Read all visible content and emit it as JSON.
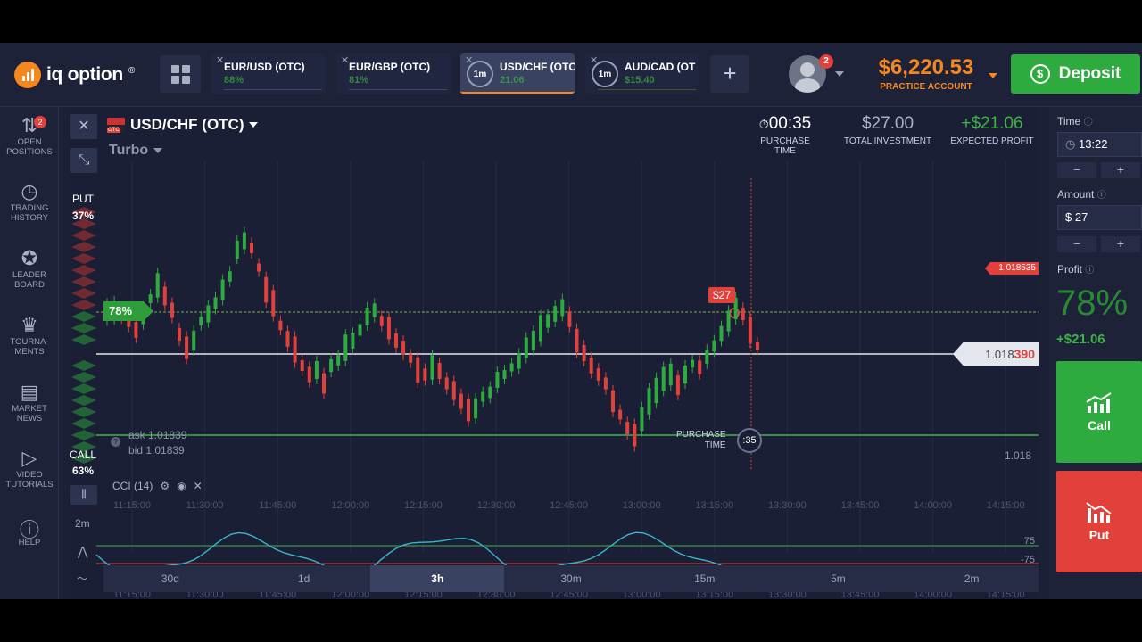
{
  "logo": {
    "text": "iq option",
    "mark": "®"
  },
  "asset_tabs": [
    {
      "name": "EUR/USD (OTC)",
      "pct": "88%",
      "timer": ""
    },
    {
      "name": "EUR/GBP (OTC)",
      "pct": "81%",
      "timer": ""
    },
    {
      "name": "USD/CHF (OTC",
      "pct": "21.06",
      "timer": "1m"
    },
    {
      "name": "AUD/CAD (OT",
      "pct": "$15.40",
      "timer": "1m"
    }
  ],
  "header": {
    "avatar_badge": "2",
    "balance": "$6,220.53",
    "account_type": "PRACTICE ACCOUNT",
    "deposit_label": "Deposit"
  },
  "sidebar": {
    "items": [
      {
        "label": "Open\npositions",
        "icon": "arrows-updown-icon",
        "badge": "2"
      },
      {
        "label": "Trading\nhistory",
        "icon": "history-icon"
      },
      {
        "label": "Leader\nboard",
        "icon": "leaderboard-icon"
      },
      {
        "label": "Tourna-\nments",
        "icon": "trophy-icon"
      },
      {
        "label": "Market\nnews",
        "icon": "news-icon"
      },
      {
        "label": "Video\ntutorials",
        "icon": "play-icon"
      },
      {
        "label": "Help",
        "icon": "help-icon"
      }
    ]
  },
  "chart": {
    "asset": "USD/CHF (OTC)",
    "flag_badge": "OTC",
    "mode": "Turbo",
    "purchase_time": {
      "value": "00:35",
      "label": "PURCHASE TIME"
    },
    "total_investment": {
      "value": "$27.00",
      "label": "TOTAL INVESTMENT"
    },
    "expected_profit": {
      "value": "+$21.06",
      "label": "EXPECTED PROFIT"
    },
    "put": {
      "label": "PUT",
      "pct": "37%"
    },
    "call": {
      "label": "CALL",
      "pct": "63%"
    },
    "green_tag": "78%",
    "ask": "ask 1.01839",
    "bid": "bid 1.01839",
    "trade_tag": "$27",
    "price_red_tag": "1.018535",
    "price_current_main": "1.018",
    "price_current_hl": "390",
    "price_level": "1.018",
    "purchase_time_label": "PURCHASE\nTIME",
    "purchase_countdown": ":35",
    "time_labels": [
      "11:15:00",
      "11:30:00",
      "11:45:00",
      "12:00:00",
      "12:15:00",
      "12:30:00",
      "12:45:00",
      "13:00:00",
      "13:15:00",
      "13:30:00",
      "13:45:00",
      "14:00:00",
      "14:15:00"
    ],
    "indicator": {
      "name": "CCI (14)",
      "level_high": "75",
      "level_low": "-75"
    },
    "left_tool_label": "2m",
    "timeframes": [
      "30d",
      "1d",
      "3h",
      "30m",
      "15m",
      "5m",
      "2m"
    ],
    "active_timeframe": "3h"
  },
  "right_panel": {
    "time_label": "Time",
    "time_value": "13:22",
    "amount_label": "Amount",
    "amount_value": "$  27",
    "profit_label": "Profit",
    "profit_pct": "78%",
    "profit_value": "+$21.06",
    "call_label": "Call",
    "put_label": "Put"
  },
  "colors": {
    "accent": "#f5871f",
    "up": "#2eab3e",
    "down": "#e2413b",
    "bg": "#1b2036"
  }
}
